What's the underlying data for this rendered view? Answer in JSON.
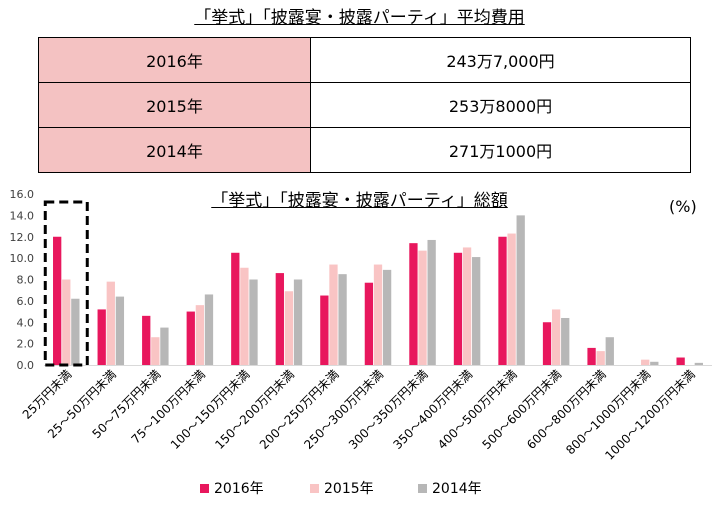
{
  "cost_table": {
    "title": "「挙式」「披露宴・披露パーティ」平均費用",
    "rows": [
      {
        "year": "2016年",
        "amount": "243万7,000円"
      },
      {
        "year": "2015年",
        "amount": "253万8000円"
      },
      {
        "year": "2014年",
        "amount": "271万1000円"
      }
    ]
  },
  "chart_data": {
    "type": "bar",
    "title": "「挙式」「披露宴・披露パーティ」総額",
    "unit_label": "(%)",
    "ylim": [
      0,
      16
    ],
    "yticks": [
      "0.0",
      "2.0",
      "4.0",
      "6.0",
      "8.0",
      "10.0",
      "12.0",
      "14.0",
      "16.0"
    ],
    "grid": false,
    "legend_position": "bottom",
    "categories": [
      "25万円未満",
      "25～50万円未満",
      "50～75万円未満",
      "75～100万円未満",
      "100～150万円未満",
      "150～200万円未満",
      "200～250万円未満",
      "250～300万円未満",
      "300～350万円未満",
      "350～400万円未満",
      "400～500万円未満",
      "500～600万円未満",
      "600～800万円未満",
      "800～1000万円未満",
      "1000～1200万円未満"
    ],
    "series": [
      {
        "name": "2016年",
        "color": "#e8175d",
        "values": [
          12.0,
          5.2,
          4.6,
          5.0,
          10.5,
          8.6,
          6.5,
          7.7,
          11.4,
          10.5,
          12.0,
          4.0,
          1.6,
          0.0,
          0.7
        ]
      },
      {
        "name": "2015年",
        "color": "#f9c4c4",
        "values": [
          8.0,
          7.8,
          2.6,
          5.6,
          9.1,
          6.9,
          9.4,
          9.4,
          10.7,
          11.0,
          12.3,
          5.2,
          1.3,
          0.5,
          0.0
        ]
      },
      {
        "name": "2014年",
        "color": "#b7b7b7",
        "values": [
          6.2,
          6.4,
          3.5,
          6.6,
          8.0,
          8.0,
          8.5,
          8.9,
          11.7,
          10.1,
          14.0,
          4.4,
          2.6,
          0.3,
          0.2
        ]
      }
    ],
    "highlight_category": "25万円未満"
  }
}
